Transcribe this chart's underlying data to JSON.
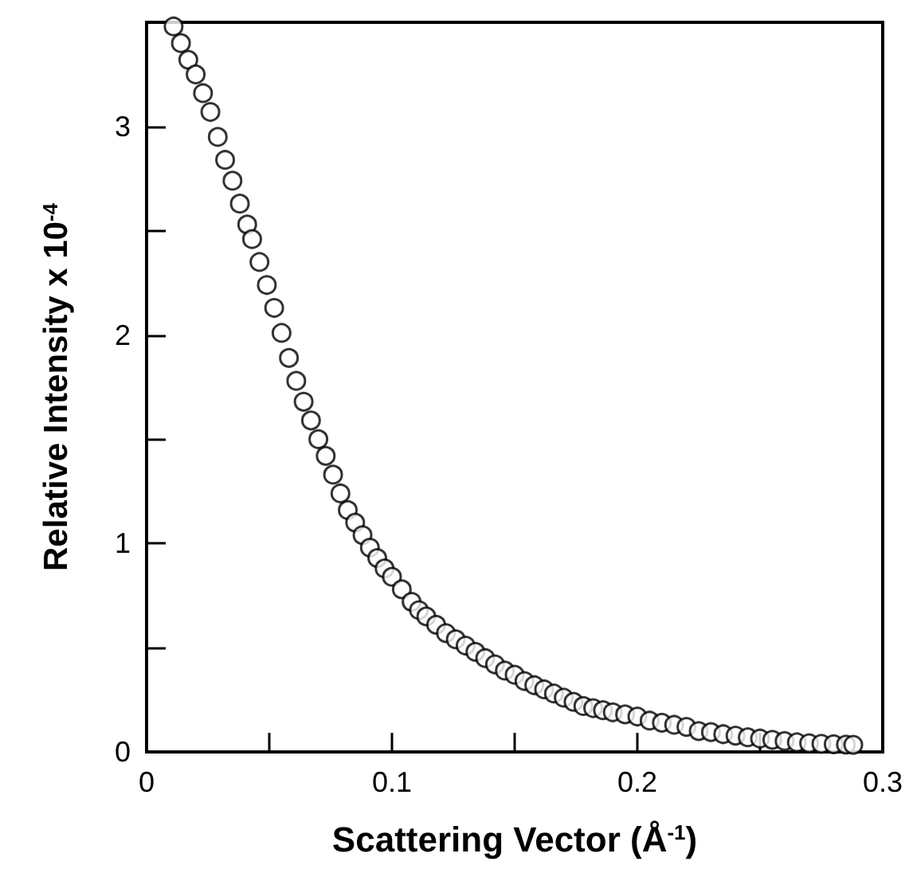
{
  "chart_data": {
    "type": "scatter",
    "xlabel": "Scattering Vector (Å$^{-1}$)",
    "ylabel": "Relative Intensity x 10$^{-4}$",
    "x": [
      0.011,
      0.014,
      0.017,
      0.02,
      0.023,
      0.026,
      0.029,
      0.032,
      0.035,
      0.038,
      0.041,
      0.043,
      0.046,
      0.049,
      0.052,
      0.055,
      0.058,
      0.061,
      0.064,
      0.067,
      0.07,
      0.073,
      0.076,
      0.079,
      0.082,
      0.085,
      0.088,
      0.091,
      0.094,
      0.097,
      0.1,
      0.104,
      0.108,
      0.111,
      0.114,
      0.118,
      0.122,
      0.126,
      0.13,
      0.134,
      0.138,
      0.142,
      0.146,
      0.15,
      0.154,
      0.158,
      0.162,
      0.166,
      0.17,
      0.174,
      0.178,
      0.182,
      0.186,
      0.19,
      0.195,
      0.2,
      0.205,
      0.21,
      0.215,
      0.22,
      0.225,
      0.23,
      0.235,
      0.24,
      0.245,
      0.25,
      0.255,
      0.26,
      0.265,
      0.27,
      0.275,
      0.28,
      0.285,
      0.288
    ],
    "series": [
      {
        "color": "#000000",
        "values": [
          3.48,
          3.4,
          3.32,
          3.25,
          3.16,
          3.07,
          2.95,
          2.84,
          2.74,
          2.63,
          2.53,
          2.46,
          2.35,
          2.24,
          2.13,
          2.01,
          1.89,
          1.78,
          1.68,
          1.59,
          1.5,
          1.42,
          1.33,
          1.24,
          1.16,
          1.1,
          1.04,
          0.98,
          0.93,
          0.88,
          0.84,
          0.78,
          0.72,
          0.68,
          0.65,
          0.61,
          0.57,
          0.54,
          0.51,
          0.48,
          0.45,
          0.42,
          0.39,
          0.37,
          0.34,
          0.32,
          0.3,
          0.28,
          0.26,
          0.24,
          0.22,
          0.21,
          0.2,
          0.19,
          0.18,
          0.17,
          0.15,
          0.14,
          0.13,
          0.12,
          0.1,
          0.095,
          0.085,
          0.078,
          0.07,
          0.064,
          0.058,
          0.052,
          0.046,
          0.042,
          0.039,
          0.037,
          0.035,
          0.034
        ]
      }
    ],
    "xlim": [
      0,
      0.3
    ],
    "xticks": [
      0,
      {
        "value": 0.05,
        "label": null
      },
      0.1,
      {
        "value": 0.15,
        "label": null
      },
      0.2,
      {
        "value": 0.25,
        "label": null
      },
      0.3
    ],
    "ylim": [
      0,
      3.5
    ],
    "yticks": [
      0,
      {
        "value": 0.5,
        "label": null
      },
      1,
      {
        "value": 1.5,
        "label": null
      },
      2,
      {
        "value": 2.5,
        "label": null
      },
      3
    ],
    "marker": "circle"
  }
}
